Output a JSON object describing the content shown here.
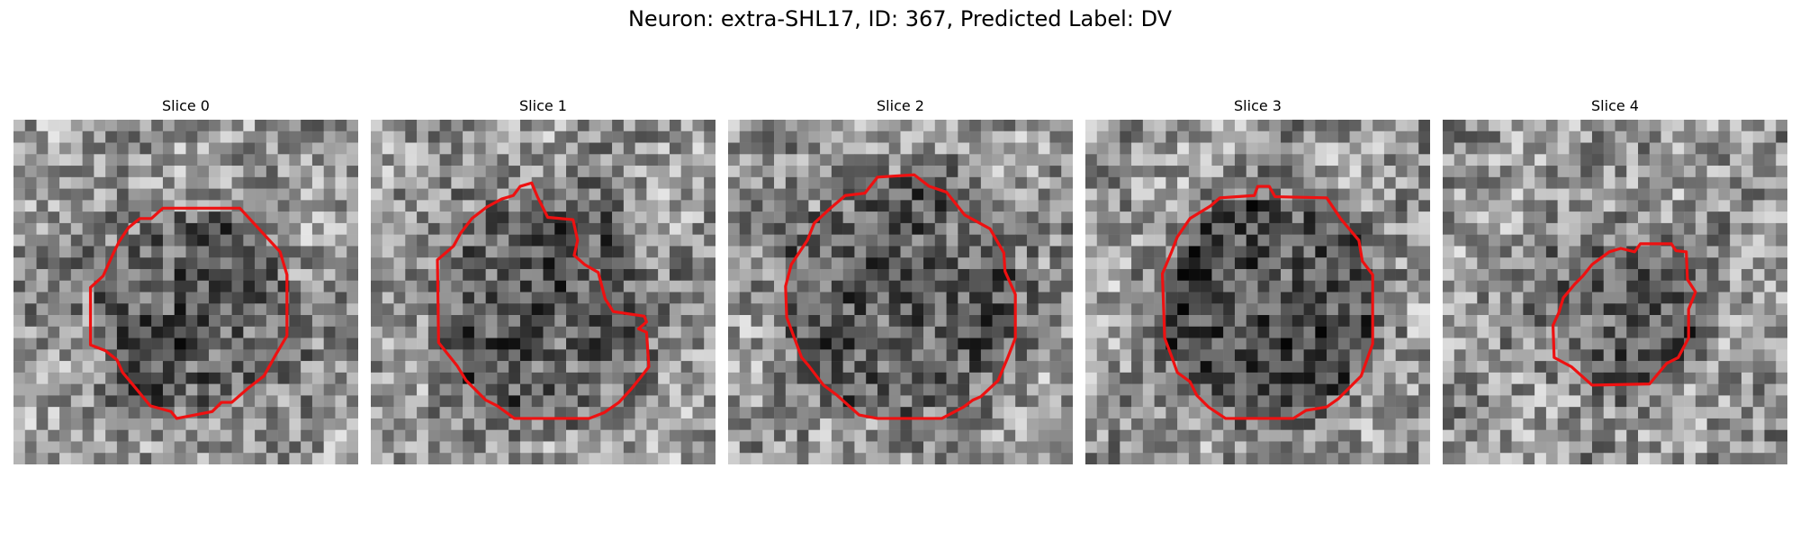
{
  "figure": {
    "title": "Neuron: extra-SHL17, ID: 367, Predicted Label: DV"
  },
  "panels": [
    {
      "title": "Slice 0"
    },
    {
      "title": "Slice 1"
    },
    {
      "title": "Slice 2"
    },
    {
      "title": "Slice 3"
    },
    {
      "title": "Slice 4"
    }
  ],
  "colors": {
    "contour": "#ee1111",
    "background": "#ffffff"
  }
}
